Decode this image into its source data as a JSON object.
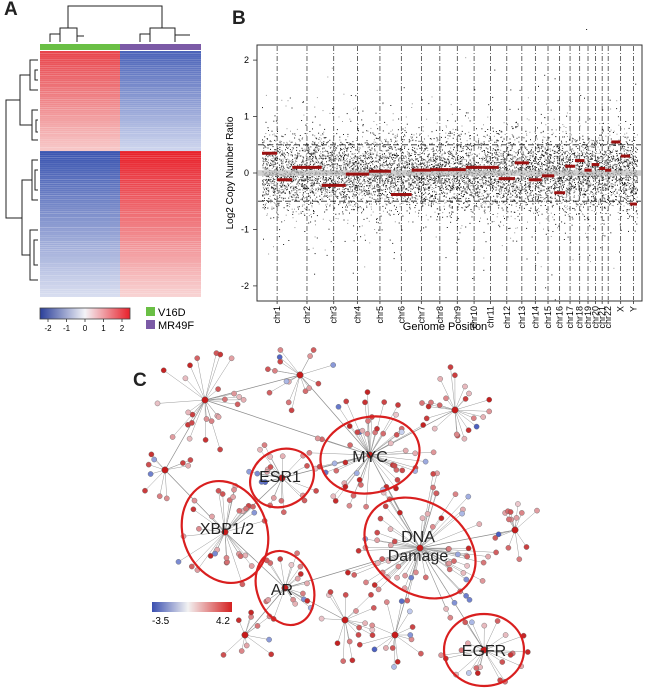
{
  "panels": {
    "a": "A",
    "b": "B",
    "c": "C"
  },
  "heatmap": {
    "legend": [
      {
        "label": "V16D",
        "color": "#6abf45"
      },
      {
        "label": "MR49F",
        "color": "#7b5aa6"
      }
    ],
    "colorbar_ticks": [
      "-2",
      "-1",
      "0",
      "1",
      "2"
    ],
    "colors": {
      "low": "#2a3f9a",
      "mid": "#f4f4f8",
      "high": "#e8202a"
    }
  },
  "chart_data": {
    "type": "scatter",
    "title": "",
    "xlabel": "Genome Position",
    "ylabel": "Log2 Copy Number Ratio",
    "ylim": [
      -2.25,
      2.25
    ],
    "yticks": [
      -2,
      -1,
      0,
      1,
      2
    ],
    "threshold_lines": [
      0.5,
      -0.5
    ],
    "chromosomes": [
      "chr1",
      "chr2",
      "chr3",
      "chr4",
      "chr5",
      "chr6",
      "chr7",
      "chr8",
      "chr9",
      "chr10",
      "chr11",
      "chr12",
      "chr13",
      "chr14",
      "chr15",
      "chr16",
      "chr17",
      "chr18",
      "chr19",
      "chr20",
      "chr21",
      "chr22",
      "X",
      "Y"
    ],
    "chrom_widths": [
      249,
      243,
      198,
      191,
      181,
      171,
      159,
      146,
      141,
      136,
      135,
      133,
      115,
      107,
      102,
      90,
      81,
      78,
      59,
      63,
      48,
      51,
      155,
      57
    ],
    "segments": [
      {
        "chrom": "chr1",
        "value": 0.35
      },
      {
        "chrom": "chr1",
        "value": -0.12
      },
      {
        "chrom": "chr2",
        "value": 0.1
      },
      {
        "chrom": "chr3",
        "value": -0.22
      },
      {
        "chrom": "chr4",
        "value": -0.02
      },
      {
        "chrom": "chr5",
        "value": 0.03
      },
      {
        "chrom": "chr6",
        "value": -0.38
      },
      {
        "chrom": "chr7",
        "value": 0.05
      },
      {
        "chrom": "chr8",
        "value": 0.06
      },
      {
        "chrom": "chr9",
        "value": 0.06
      },
      {
        "chrom": "chr10",
        "value": 0.1
      },
      {
        "chrom": "chr11",
        "value": 0.1
      },
      {
        "chrom": "chr12",
        "value": -0.1
      },
      {
        "chrom": "chr13",
        "value": 0.18
      },
      {
        "chrom": "chr14",
        "value": -0.12
      },
      {
        "chrom": "chr15",
        "value": -0.05
      },
      {
        "chrom": "chr16",
        "value": -0.35
      },
      {
        "chrom": "chr17",
        "value": 0.12
      },
      {
        "chrom": "chr18",
        "value": 0.22
      },
      {
        "chrom": "chr19",
        "value": 0.05
      },
      {
        "chrom": "chr20",
        "value": 0.15
      },
      {
        "chrom": "chr21",
        "value": 0.08
      },
      {
        "chrom": "chr22",
        "value": 0.05
      },
      {
        "chrom": "X",
        "value": 0.55
      },
      {
        "chrom": "X",
        "value": 0.3
      },
      {
        "chrom": "Y",
        "value": -0.55
      }
    ]
  },
  "network": {
    "clusters": [
      "MYC",
      "ESR1",
      "XBP1/2",
      "DNA\nDamage",
      "AR",
      "EGFR"
    ],
    "colorbar": {
      "min_label": "-3.5",
      "max_label": "4.2"
    },
    "colors": {
      "node_low": "#3a4fb0",
      "node_mid": "#f2f2f2",
      "node_high": "#d42020",
      "edge": "#9a9a9a",
      "ellipse": "#d91f1f"
    }
  }
}
